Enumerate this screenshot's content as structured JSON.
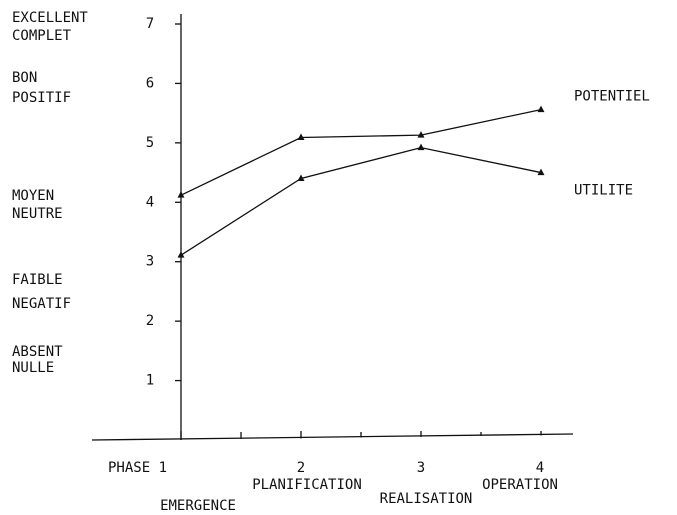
{
  "chart_data": {
    "type": "line",
    "categories": [
      "PHASE 1",
      "2",
      "3",
      "4"
    ],
    "phase_names": [
      "EMERGENCE",
      "PLANIFICATION",
      "REALISATION",
      "OPERATION"
    ],
    "scale_labels": [
      [
        "EXCELLENT",
        "COMPLET"
      ],
      [
        "BON",
        "POSITIF"
      ],
      [
        "MOYEN",
        "NEUTRE"
      ],
      [
        "FAIBLE",
        "NEGATIF"
      ],
      [
        "ABSENT",
        "NULLE"
      ]
    ],
    "series": [
      {
        "name": "POTENTIEL",
        "color": "#111111",
        "values": [
          4.12,
          5.09,
          5.13,
          5.56
        ]
      },
      {
        "name": "UTILITE",
        "color": "#111111",
        "values": [
          3.11,
          4.4,
          4.92,
          4.5
        ]
      }
    ],
    "ylim": [
      0,
      7
    ],
    "yticks": [
      1,
      2,
      3,
      4,
      5,
      6,
      7
    ],
    "grid": false
  }
}
